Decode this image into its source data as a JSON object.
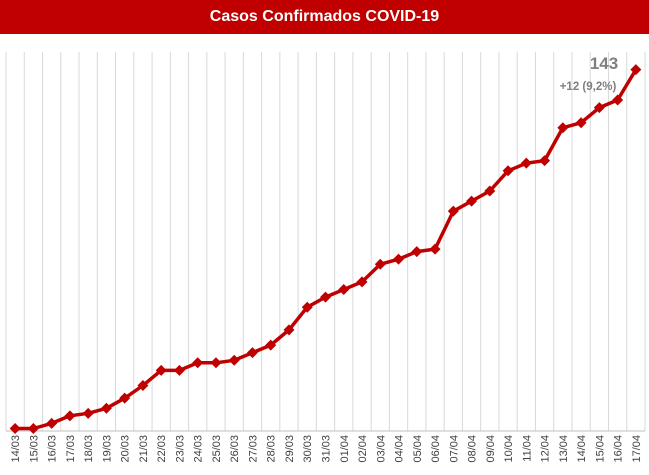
{
  "chart_data": {
    "type": "line",
    "title": "Casos Confirmados COVID-19",
    "categories": [
      "14/03",
      "15/03",
      "16/03",
      "17/03",
      "18/03",
      "19/03",
      "20/03",
      "21/03",
      "22/03",
      "23/03",
      "24/03",
      "25/03",
      "26/03",
      "27/03",
      "28/03",
      "29/03",
      "30/03",
      "31/03",
      "01/04",
      "02/04",
      "03/04",
      "04/04",
      "05/04",
      "06/04",
      "07/04",
      "08/04",
      "09/04",
      "10/04",
      "11/04",
      "12/04",
      "13/04",
      "14/04",
      "15/04",
      "16/04",
      "17/04"
    ],
    "series": [
      {
        "values": [
          1,
          1,
          3,
          6,
          7,
          9,
          13,
          18,
          24,
          24,
          27,
          27,
          28,
          31,
          34,
          40,
          49,
          53,
          56,
          59,
          66,
          68,
          71,
          72,
          87,
          91,
          95,
          103,
          106,
          107,
          120,
          122,
          128,
          131,
          143
        ],
        "color": "#c00000"
      }
    ],
    "ylim": [
      0,
      150
    ],
    "grid": "vertical",
    "annotation": {
      "value": "143",
      "change": "+12 (9,2%)"
    }
  }
}
